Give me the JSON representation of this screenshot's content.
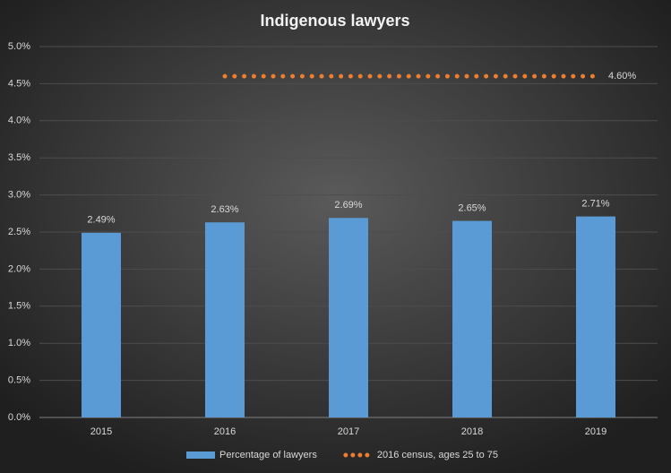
{
  "chart_data": {
    "type": "bar",
    "title": "Indigenous lawyers",
    "categories": [
      "2015",
      "2016",
      "2017",
      "2018",
      "2019"
    ],
    "series": [
      {
        "name": "Percentage of lawyers",
        "type": "bar",
        "color": "#5b9bd5",
        "values": [
          2.49,
          2.63,
          2.69,
          2.65,
          2.71
        ],
        "value_labels": [
          "2.49%",
          "2.63%",
          "2.69%",
          "2.65%",
          "2.71%"
        ]
      },
      {
        "name": "2016 census, ages 25 to 75",
        "type": "line",
        "color": "#ed7d31",
        "values": [
          null,
          4.6,
          4.6,
          4.6,
          4.6
        ],
        "value_labels": [
          null,
          null,
          null,
          null,
          "4.60%"
        ]
      }
    ],
    "ylim": [
      0,
      5
    ],
    "yticks": [
      {
        "value": 0,
        "label": "0.0%"
      },
      {
        "value": 0.5,
        "label": "0.5%"
      },
      {
        "value": 1,
        "label": "1.0%"
      },
      {
        "value": 1.5,
        "label": "1.5%"
      },
      {
        "value": 2,
        "label": "2.0%"
      },
      {
        "value": 2.5,
        "label": "2.5%"
      },
      {
        "value": 3,
        "label": "3.0%"
      },
      {
        "value": 3.5,
        "label": "3.5%"
      },
      {
        "value": 4,
        "label": "4.0%"
      },
      {
        "value": 4.5,
        "label": "4.5%"
      },
      {
        "value": 5,
        "label": "5.0%"
      }
    ],
    "grid": true,
    "legend": "bottom"
  }
}
